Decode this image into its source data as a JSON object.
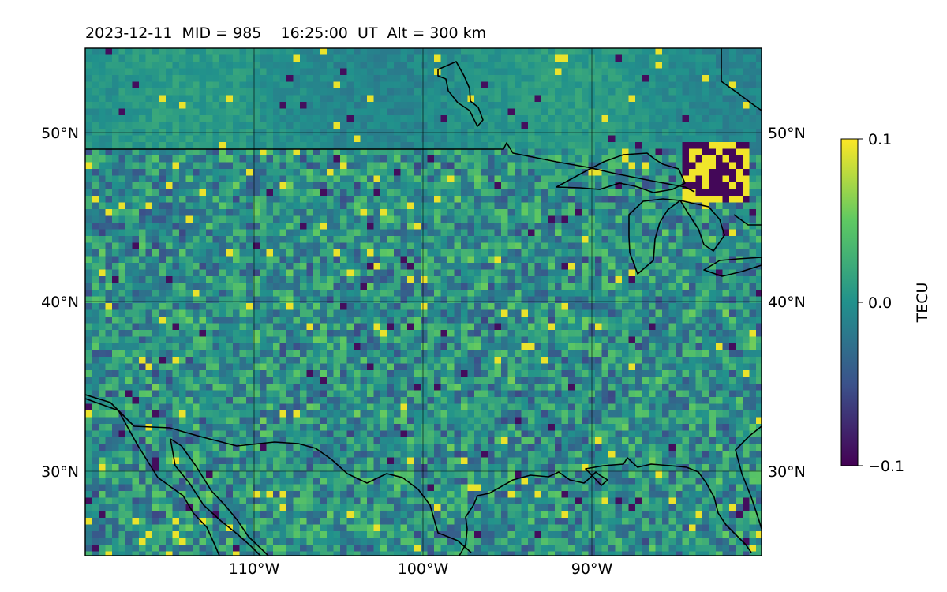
{
  "header": {
    "title": "2023-12-11  MID = 985    16:25:00  UT  Alt = 300 km"
  },
  "map": {
    "projection": "equirectangular",
    "lon_range": [
      -120,
      -80
    ],
    "lat_range": [
      25,
      55
    ],
    "lon_ticks": [
      {
        "value": -110,
        "label": "110°W"
      },
      {
        "value": -100,
        "label": "100°W"
      },
      {
        "value": -90,
        "label": "90°W"
      }
    ],
    "lat_ticks": [
      {
        "value": 50,
        "label": "50°N"
      },
      {
        "value": 40,
        "label": "40°N"
      },
      {
        "value": 30,
        "label": "30°N"
      }
    ],
    "gridlines": true,
    "coastline_color": "#000000",
    "field": "detrended total electron content (dTEC), noisy mesoscale pattern with strong negative/positive anomalies near the Great Lakes"
  },
  "colorbar": {
    "label": "TECU",
    "colormap": "viridis",
    "range": [
      -0.1,
      0.1
    ],
    "ticks": [
      {
        "value": 0.1,
        "label": "0.1"
      },
      {
        "value": 0.0,
        "label": "0.0"
      },
      {
        "value": -0.1,
        "label": "−0.1"
      }
    ],
    "colors": [
      "#440154",
      "#3b528b",
      "#21918c",
      "#5ec962",
      "#fde725"
    ]
  }
}
